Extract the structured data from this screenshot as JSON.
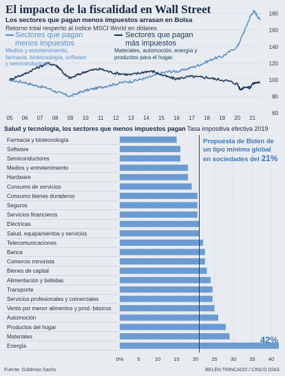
{
  "title": "El impacto de la fiscalidad en Wall Street",
  "subtitle": "Los sectores que pagan menos impuestos arrasan en Bolsa",
  "subnote": "Retorno total respecto al índice MSCI World en dólares",
  "legend": {
    "low_tax_title": "Sectores que pagan menos impuestos",
    "low_tax_desc": "Medios y entretenimiento, farmacia, biotecnología, software y semiconductores",
    "high_tax_title": "Sectores que pagan más impuestos",
    "high_tax_desc": "Materiales, automoción, energía y productos para el hogar."
  },
  "bar_title_bold": "Salud y tecnología, los sectores que menos impuestos pagan",
  "bar_title_rest": " Tasa impositiva efectiva 2019",
  "biden_note_prefix": "Propuesta de Biden de un tipo mínimo global en sociedades del ",
  "biden_note_value": "21%",
  "source": "Fuente: Goldman Sachs",
  "credit": "BELÉN TRINCADO / CINCO DÍAS",
  "colors": {
    "light_series": "#5b8ec6",
    "dark_series": "#1c3558",
    "bar": "#6c9bd2",
    "accent": "#3d76b8",
    "grid": "#b9c3d0"
  },
  "chart_data": [
    {
      "type": "line",
      "x_ticks": [
        "05",
        "06",
        "07",
        "08",
        "09",
        "10",
        "11",
        "12",
        "13",
        "14",
        "15",
        "16",
        "17",
        "18",
        "19",
        "20",
        "21"
      ],
      "y_ticks": [
        60,
        80,
        100,
        120,
        140,
        160,
        180
      ],
      "ylim": [
        60,
        188
      ],
      "xlim": [
        2005,
        2021.6
      ],
      "series": [
        {
          "name": "Sectores que pagan menos impuestos",
          "color": "#5b8ec6",
          "points": [
            [
              2005.0,
              100
            ],
            [
              2005.5,
              98
            ],
            [
              2006.0,
              97
            ],
            [
              2006.5,
              94
            ],
            [
              2007.0,
              92
            ],
            [
              2007.5,
              90
            ],
            [
              2008.0,
              86
            ],
            [
              2008.5,
              83
            ],
            [
              2009.0,
              80
            ],
            [
              2009.5,
              84
            ],
            [
              2010.0,
              87
            ],
            [
              2010.5,
              89
            ],
            [
              2011.0,
              91
            ],
            [
              2011.5,
              93
            ],
            [
              2012.0,
              95
            ],
            [
              2012.5,
              97
            ],
            [
              2013.0,
              98
            ],
            [
              2013.5,
              100
            ],
            [
              2014.0,
              102
            ],
            [
              2014.5,
              105
            ],
            [
              2015.0,
              108
            ],
            [
              2015.5,
              110
            ],
            [
              2016.0,
              110
            ],
            [
              2016.5,
              112
            ],
            [
              2017.0,
              115
            ],
            [
              2017.5,
              118
            ],
            [
              2018.0,
              122
            ],
            [
              2018.5,
              126
            ],
            [
              2019.0,
              128
            ],
            [
              2019.5,
              134
            ],
            [
              2020.0,
              140
            ],
            [
              2020.3,
              152
            ],
            [
              2020.6,
              165
            ],
            [
              2020.9,
              178
            ],
            [
              2021.1,
              183
            ],
            [
              2021.3,
              178
            ],
            [
              2021.5,
              172
            ]
          ]
        },
        {
          "name": "Sectores que pagan más impuestos",
          "color": "#1c3558",
          "points": [
            [
              2005.0,
              100
            ],
            [
              2005.5,
              104
            ],
            [
              2006.0,
              107
            ],
            [
              2006.5,
              112
            ],
            [
              2007.0,
              116
            ],
            [
              2007.5,
              120
            ],
            [
              2008.0,
              118
            ],
            [
              2008.3,
              114
            ],
            [
              2008.7,
              105
            ],
            [
              2009.0,
              102
            ],
            [
              2009.5,
              106
            ],
            [
              2010.0,
              110
            ],
            [
              2010.5,
              112
            ],
            [
              2011.0,
              113
            ],
            [
              2011.5,
              110
            ],
            [
              2012.0,
              108
            ],
            [
              2012.5,
              107
            ],
            [
              2013.0,
              106
            ],
            [
              2013.5,
              108
            ],
            [
              2014.0,
              110
            ],
            [
              2014.5,
              110
            ],
            [
              2015.0,
              106
            ],
            [
              2015.5,
              103
            ],
            [
              2016.0,
              101
            ],
            [
              2016.5,
              103
            ],
            [
              2017.0,
              104
            ],
            [
              2017.5,
              103
            ],
            [
              2018.0,
              103
            ],
            [
              2018.5,
              101
            ],
            [
              2019.0,
              100
            ],
            [
              2019.5,
              98
            ],
            [
              2020.0,
              95
            ],
            [
              2020.2,
              88
            ],
            [
              2020.5,
              92
            ],
            [
              2020.8,
              90
            ],
            [
              2021.0,
              95
            ],
            [
              2021.3,
              97
            ],
            [
              2021.5,
              96
            ]
          ]
        }
      ]
    },
    {
      "type": "bar",
      "orientation": "horizontal",
      "categories": [
        "Farmacia y biotecnología",
        "Software",
        "Semiconductores",
        "Medios y entretenimiento",
        "Hardware",
        "Consumo de servicios",
        "Consumo bienes duraderos",
        "Seguros",
        "Servicios financieros",
        "Eléctricas",
        "Salud, equipamientos y servicios",
        "Telecomunicaciones",
        "Banca",
        "Comercio minorista",
        "Bienes de capital",
        "Alimentación y bebidas",
        "Transporte",
        "Servicios profesionales y comerciales",
        "Venta por menor alimentos y prod. básicos",
        "Automoción",
        "Productos del hogar",
        "Materiales",
        "Energía"
      ],
      "values": [
        15,
        16,
        16,
        18,
        18,
        19,
        20.5,
        20.5,
        20.5,
        21,
        21,
        22,
        22.5,
        22.5,
        23,
        24,
        24.5,
        24.5,
        25,
        26,
        28,
        29,
        42
      ],
      "x_ticks": [
        "0%",
        "5",
        "10",
        "15",
        "20",
        "25",
        "30",
        "35",
        "40"
      ],
      "xlim": [
        0,
        42
      ],
      "reference_line": 21,
      "highlight_label": "42%"
    }
  ]
}
